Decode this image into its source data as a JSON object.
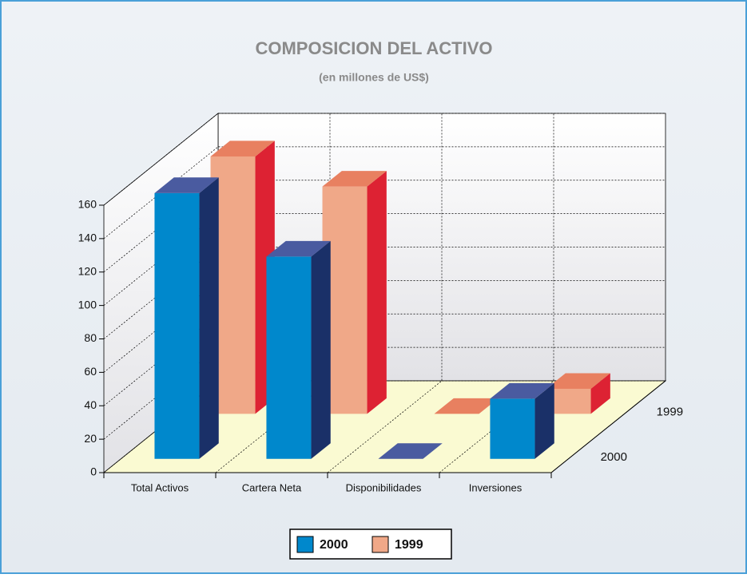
{
  "chart_data": {
    "type": "bar",
    "title": "COMPOSICION DEL ACTIVO",
    "subtitle": "(en millones de US$)",
    "categories": [
      "Total Activos",
      "Cartera Neta",
      "Disponibilidades",
      "Inversiones"
    ],
    "series": [
      {
        "name": "2000",
        "color": "#0088cc",
        "values": [
          159,
          121,
          0,
          36
        ]
      },
      {
        "name": "1999",
        "color": "#f0a888",
        "values": [
          154,
          136,
          0,
          15
        ]
      }
    ],
    "ylim": [
      0,
      160
    ],
    "yticks": [
      0,
      20,
      40,
      60,
      80,
      100,
      120,
      140,
      160
    ],
    "grid": true
  }
}
